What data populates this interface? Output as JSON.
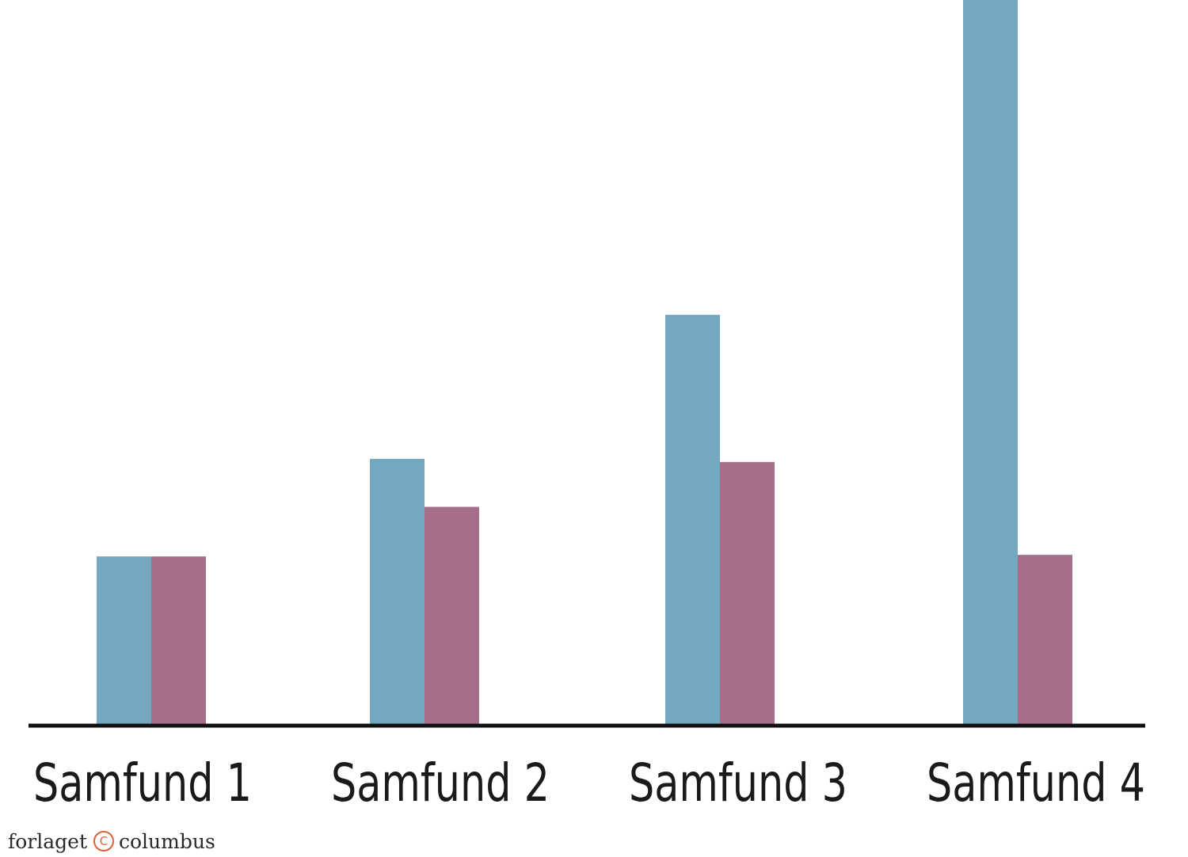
{
  "chart_data": {
    "type": "bar",
    "categories": [
      "Samfund 1",
      "Samfund 2",
      "Samfund 3",
      "Samfund 4"
    ],
    "series": [
      {
        "color": "#73a8c0",
        "values": [
          213,
          337,
          520,
          920
        ]
      },
      {
        "color": "#a56f8a",
        "values": [
          213,
          276,
          333,
          215
        ]
      }
    ],
    "title": "",
    "xlabel": "",
    "ylabel": "",
    "ylim": [
      0,
      920
    ],
    "grid": false,
    "legend": "none"
  },
  "footer": {
    "publisher_left": "forlaget",
    "copyright_symbol": "C",
    "publisher_right": "columbus"
  }
}
